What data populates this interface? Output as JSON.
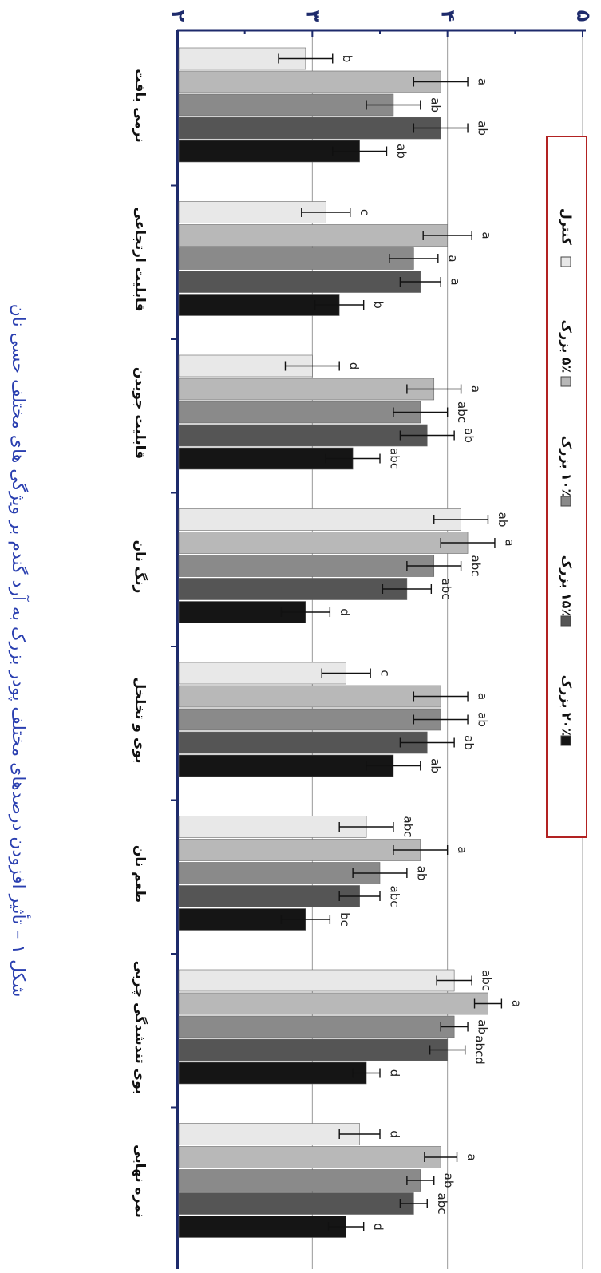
{
  "chart_data": {
    "type": "bar",
    "caption": "شکل ۱ – تأثیر افزودن درصدهای مختلف پودر بزرک به آرد گندم بر ویژگی های مختلف حسی نان",
    "categories": [
      "نرمی بافت",
      "قابلیت ارتجاعی",
      "قابلیت جویدن",
      "رنگ نان",
      "بوی و تخلخل",
      "طعم نان",
      "بوی تندشدگی چربی",
      "نمره نهایی"
    ],
    "tick_labels": [
      "۲",
      "۳",
      "۴",
      "۵"
    ],
    "ylim": [
      2,
      5
    ],
    "legend_position": "right",
    "series": [
      {
        "name": "کنترل",
        "color": "#e8e8e8",
        "values": [
          2.95,
          3.1,
          3.0,
          4.1,
          3.25,
          3.4,
          4.05,
          3.35
        ],
        "errors": [
          0.2,
          0.18,
          0.2,
          0.2,
          0.18,
          0.2,
          0.13,
          0.15
        ],
        "letters": [
          "b",
          "c",
          "d",
          "ab",
          "c",
          "abc",
          "abc",
          "d"
        ]
      },
      {
        "name": "۵٪ بزرک",
        "color": "#b8b8b8",
        "values": [
          3.95,
          4.0,
          3.9,
          4.15,
          3.95,
          3.8,
          4.3,
          3.95
        ],
        "errors": [
          0.2,
          0.18,
          0.2,
          0.2,
          0.2,
          0.2,
          0.1,
          0.12
        ],
        "letters": [
          "a",
          "a",
          "a",
          "a",
          "a",
          "a",
          "a",
          "a"
        ]
      },
      {
        "name": "۱۰٪ بزرک",
        "color": "#8a8a8a",
        "values": [
          3.6,
          3.75,
          3.8,
          3.9,
          3.95,
          3.5,
          4.05,
          3.8
        ],
        "errors": [
          0.2,
          0.18,
          0.2,
          0.2,
          0.2,
          0.2,
          0.1,
          0.1
        ],
        "letters": [
          "ab",
          "a",
          "abc",
          "abc",
          "ab",
          "ab",
          "ab",
          "ab"
        ]
      },
      {
        "name": "۱۵٪ بزرک",
        "color": "#555555",
        "values": [
          3.95,
          3.8,
          3.85,
          3.7,
          3.85,
          3.35,
          4.0,
          3.75
        ],
        "errors": [
          0.2,
          0.15,
          0.2,
          0.18,
          0.2,
          0.15,
          0.13,
          0.1
        ],
        "letters": [
          "ab",
          "a",
          "ab",
          "abc",
          "ab",
          "abc",
          "abcd",
          "abc"
        ]
      },
      {
        "name": "۲۰٪ بزرک",
        "color": "#151515",
        "values": [
          3.35,
          3.2,
          3.3,
          2.95,
          3.6,
          2.95,
          3.4,
          3.25
        ],
        "errors": [
          0.2,
          0.18,
          0.2,
          0.18,
          0.2,
          0.18,
          0.1,
          0.13
        ],
        "letters": [
          "ab",
          "b",
          "abc",
          "d",
          "ab",
          "bc",
          "d",
          "d"
        ]
      }
    ]
  }
}
